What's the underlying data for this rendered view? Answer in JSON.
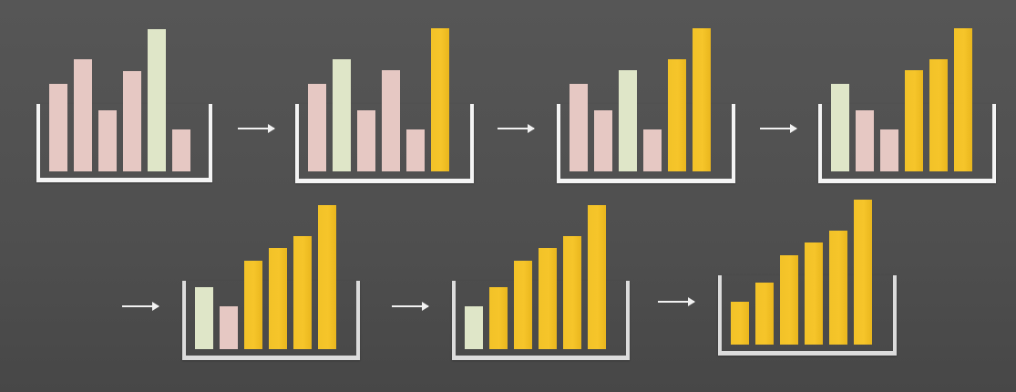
{
  "colors": {
    "background": "#525252",
    "frame": "#f4f4f4",
    "frame_faded": "#dcdcdc",
    "unsorted": "#e6c8c3",
    "current_max": "#dfe6c8",
    "sorted": "#f4c32a",
    "arrow": "#f2f2f2"
  },
  "icons": {
    "arrow": "right-arrow-icon"
  },
  "steps": [
    {
      "bars": [
        {
          "value": 100,
          "state": "unsorted"
        },
        {
          "value": 128,
          "state": "unsorted"
        },
        {
          "value": 70,
          "state": "unsorted"
        },
        {
          "value": 115,
          "state": "unsorted"
        },
        {
          "value": 163,
          "state": "current-max"
        },
        {
          "value": 48,
          "state": "unsorted"
        }
      ]
    },
    {
      "bars": [
        {
          "value": 100,
          "state": "unsorted"
        },
        {
          "value": 128,
          "state": "current-max"
        },
        {
          "value": 70,
          "state": "unsorted"
        },
        {
          "value": 115,
          "state": "unsorted"
        },
        {
          "value": 48,
          "state": "unsorted"
        },
        {
          "value": 163,
          "state": "sorted"
        }
      ]
    },
    {
      "bars": [
        {
          "value": 100,
          "state": "unsorted"
        },
        {
          "value": 70,
          "state": "unsorted"
        },
        {
          "value": 115,
          "state": "current-max"
        },
        {
          "value": 48,
          "state": "unsorted"
        },
        {
          "value": 128,
          "state": "sorted"
        },
        {
          "value": 163,
          "state": "sorted"
        }
      ]
    },
    {
      "bars": [
        {
          "value": 100,
          "state": "current-max"
        },
        {
          "value": 70,
          "state": "unsorted"
        },
        {
          "value": 48,
          "state": "unsorted"
        },
        {
          "value": 115,
          "state": "sorted"
        },
        {
          "value": 128,
          "state": "sorted"
        },
        {
          "value": 163,
          "state": "sorted"
        }
      ]
    },
    {
      "bars": [
        {
          "value": 70,
          "state": "current-max"
        },
        {
          "value": 48,
          "state": "unsorted"
        },
        {
          "value": 100,
          "state": "sorted"
        },
        {
          "value": 115,
          "state": "sorted"
        },
        {
          "value": 128,
          "state": "sorted"
        },
        {
          "value": 163,
          "state": "sorted"
        }
      ]
    },
    {
      "bars": [
        {
          "value": 48,
          "state": "current-max"
        },
        {
          "value": 70,
          "state": "sorted"
        },
        {
          "value": 100,
          "state": "sorted"
        },
        {
          "value": 115,
          "state": "sorted"
        },
        {
          "value": 128,
          "state": "sorted"
        },
        {
          "value": 163,
          "state": "sorted"
        }
      ]
    },
    {
      "bars": [
        {
          "value": 48,
          "state": "sorted"
        },
        {
          "value": 70,
          "state": "sorted"
        },
        {
          "value": 100,
          "state": "sorted"
        },
        {
          "value": 115,
          "state": "sorted"
        },
        {
          "value": 128,
          "state": "sorted"
        },
        {
          "value": 163,
          "state": "sorted"
        }
      ]
    }
  ]
}
